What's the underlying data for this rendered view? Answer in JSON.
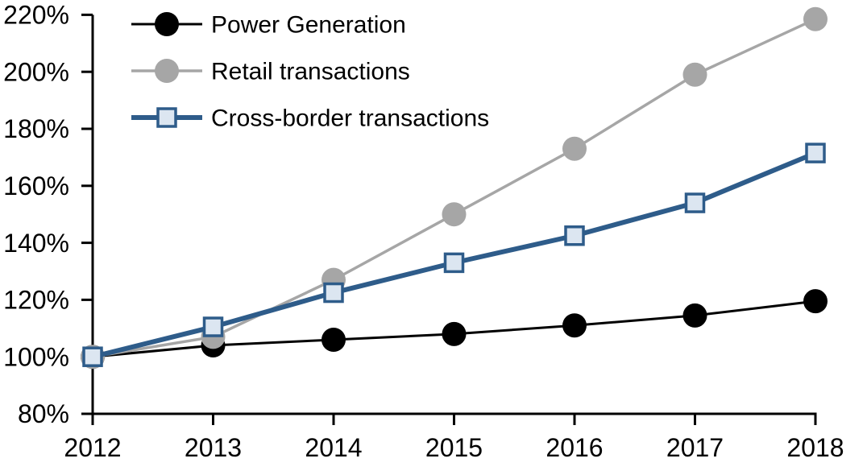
{
  "chart_data": {
    "type": "line",
    "title": "",
    "xlabel": "",
    "ylabel": "",
    "categories": [
      "2012",
      "2013",
      "2014",
      "2015",
      "2016",
      "2017",
      "2018"
    ],
    "series": [
      {
        "name": "Power Generation",
        "marker": "circle",
        "line_color": "#000000",
        "marker_fill": "#000000",
        "marker_stroke": "#000000",
        "line_width": 3,
        "values": [
          100,
          104,
          106,
          108,
          111,
          114.5,
          119.5
        ]
      },
      {
        "name": "Retail transactions",
        "marker": "circle",
        "line_color": "#A6A6A6",
        "marker_fill": "#A6A6A6",
        "marker_stroke": "#A6A6A6",
        "line_width": 3.5,
        "values": [
          100,
          107,
          127,
          150,
          173,
          199,
          218.5
        ]
      },
      {
        "name": "Cross-border transactions",
        "marker": "square",
        "line_color": "#2E5C8A",
        "marker_fill": "#DCE6F1",
        "marker_stroke": "#2E5C8A",
        "line_width": 6,
        "values": [
          100,
          110.5,
          122.5,
          133,
          142.5,
          154,
          171.5
        ]
      }
    ],
    "y_ticks": [
      80,
      100,
      120,
      140,
      160,
      180,
      200,
      220
    ],
    "y_tick_labels": [
      "80%",
      "100%",
      "120%",
      "140%",
      "160%",
      "180%",
      "200%",
      "220%"
    ],
    "ylim": [
      80,
      220
    ],
    "grid": false,
    "legend_position": "top-left",
    "axis_color": "#000000",
    "background_color": "#ffffff"
  }
}
